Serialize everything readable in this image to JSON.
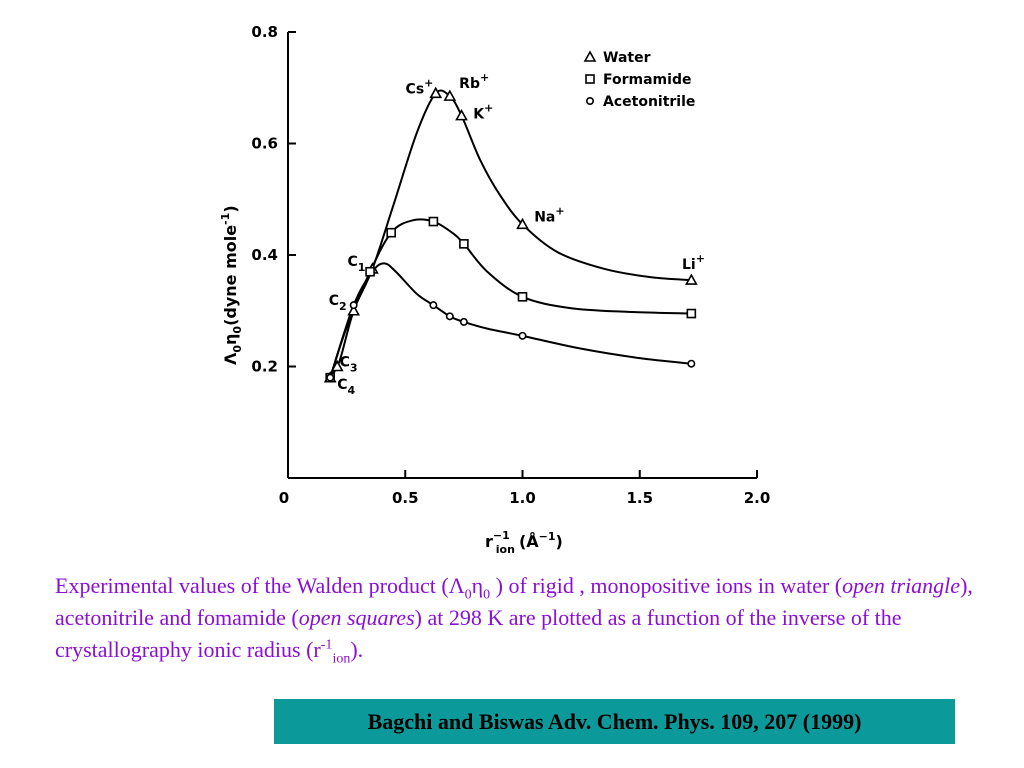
{
  "chart_data": {
    "type": "line",
    "xlim": [
      0,
      2.0
    ],
    "ylim": [
      0,
      0.8
    ],
    "x_ticks": [
      "0",
      "0.5",
      "1.0",
      "1.5",
      "2.0"
    ],
    "y_ticks": [
      "0.2",
      "0.4",
      "0.6",
      "0.8"
    ],
    "ylabel": {
      "main": "Λ",
      "s1": "0",
      "mid": "η",
      "s2": "0",
      "rest": "(dyne mole",
      "sup": "-1",
      "end": ")"
    },
    "xlabel": {
      "main": "r",
      "sup": "−1",
      "sub": "ion",
      "unit": "(Å",
      "unit_sup": "−1",
      "end": ")"
    },
    "legend": [
      "Water",
      "Formamide",
      "Acetonitrile"
    ],
    "series": [
      {
        "name": "Water",
        "marker": "triangle",
        "points": [
          [
            0.18,
            0.18
          ],
          [
            0.21,
            0.2
          ],
          [
            0.28,
            0.3
          ],
          [
            0.36,
            0.375
          ],
          [
            0.63,
            0.69
          ],
          [
            0.69,
            0.685
          ],
          [
            0.74,
            0.65
          ],
          [
            1.0,
            0.455
          ],
          [
            1.72,
            0.355
          ]
        ],
        "curve": [
          [
            0.18,
            0.18
          ],
          [
            0.22,
            0.21
          ],
          [
            0.28,
            0.3
          ],
          [
            0.36,
            0.375
          ],
          [
            0.45,
            0.49
          ],
          [
            0.55,
            0.62
          ],
          [
            0.63,
            0.69
          ],
          [
            0.69,
            0.685
          ],
          [
            0.74,
            0.65
          ],
          [
            0.82,
            0.57
          ],
          [
            0.9,
            0.51
          ],
          [
            1.0,
            0.455
          ],
          [
            1.15,
            0.405
          ],
          [
            1.35,
            0.375
          ],
          [
            1.55,
            0.36
          ],
          [
            1.72,
            0.355
          ]
        ]
      },
      {
        "name": "Formamide",
        "marker": "square",
        "points": [
          [
            0.18,
            0.18
          ],
          [
            0.35,
            0.37
          ],
          [
            0.44,
            0.44
          ],
          [
            0.62,
            0.46
          ],
          [
            0.75,
            0.42
          ],
          [
            1.0,
            0.325
          ],
          [
            1.72,
            0.295
          ]
        ],
        "curve": [
          [
            0.18,
            0.18
          ],
          [
            0.25,
            0.27
          ],
          [
            0.35,
            0.37
          ],
          [
            0.44,
            0.44
          ],
          [
            0.53,
            0.462
          ],
          [
            0.62,
            0.46
          ],
          [
            0.7,
            0.44
          ],
          [
            0.75,
            0.42
          ],
          [
            0.85,
            0.37
          ],
          [
            1.0,
            0.325
          ],
          [
            1.2,
            0.305
          ],
          [
            1.45,
            0.298
          ],
          [
            1.72,
            0.295
          ]
        ]
      },
      {
        "name": "Acetonitrile",
        "marker": "circle",
        "points": [
          [
            0.18,
            0.18
          ],
          [
            0.28,
            0.31
          ],
          [
            0.62,
            0.31
          ],
          [
            0.69,
            0.29
          ],
          [
            0.75,
            0.28
          ],
          [
            1.0,
            0.255
          ],
          [
            1.72,
            0.205
          ]
        ],
        "curve": [
          [
            0.18,
            0.18
          ],
          [
            0.28,
            0.31
          ],
          [
            0.36,
            0.37
          ],
          [
            0.41,
            0.385
          ],
          [
            0.46,
            0.37
          ],
          [
            0.55,
            0.33
          ],
          [
            0.62,
            0.31
          ],
          [
            0.69,
            0.29
          ],
          [
            0.75,
            0.28
          ],
          [
            0.85,
            0.268
          ],
          [
            1.0,
            0.255
          ],
          [
            1.25,
            0.232
          ],
          [
            1.5,
            0.215
          ],
          [
            1.72,
            0.205
          ]
        ]
      }
    ],
    "point_labels": [
      {
        "text": "Cs",
        "sup": "+",
        "x": 0.62,
        "y": 0.69,
        "anchor": "end"
      },
      {
        "text": "Rb",
        "sup": "+",
        "x": 0.73,
        "y": 0.7,
        "anchor": "start"
      },
      {
        "text": "K",
        "sup": "+",
        "x": 0.79,
        "y": 0.645,
        "anchor": "start"
      },
      {
        "text": "Na",
        "sup": "+",
        "x": 1.05,
        "y": 0.46,
        "anchor": "start"
      },
      {
        "text": "Li",
        "sup": "+",
        "x": 1.68,
        "y": 0.375,
        "anchor": "start"
      },
      {
        "text": "C",
        "sub": "1",
        "x": 0.33,
        "y": 0.38,
        "anchor": "end"
      },
      {
        "text": "C",
        "sub": "2",
        "x": 0.25,
        "y": 0.31,
        "anchor": "end"
      },
      {
        "text": "C",
        "sub": "3",
        "x": 0.22,
        "y": 0.2,
        "anchor": "start"
      },
      {
        "text": "C",
        "sub": "4",
        "x": 0.21,
        "y": 0.16,
        "anchor": "start"
      }
    ]
  },
  "caption": {
    "p1": "Experimental values of the Walden product (Λ",
    "s1": "0",
    "p2": "η",
    "s2": "0",
    "p3": " ) of rigid , monopositive ions in water (",
    "i1": "open triangle",
    "p4": "), acetonitrile and fomamide (",
    "i2": "open squares",
    "p5": ") at 298 K are plotted as a function of the inverse of the crystallography ionic radius (r",
    "sup": "-1",
    "sub": "ion",
    "p6": ")."
  },
  "reference": "Bagchi and Biswas Adv. Chem. Phys. 109, 207 (1999)"
}
